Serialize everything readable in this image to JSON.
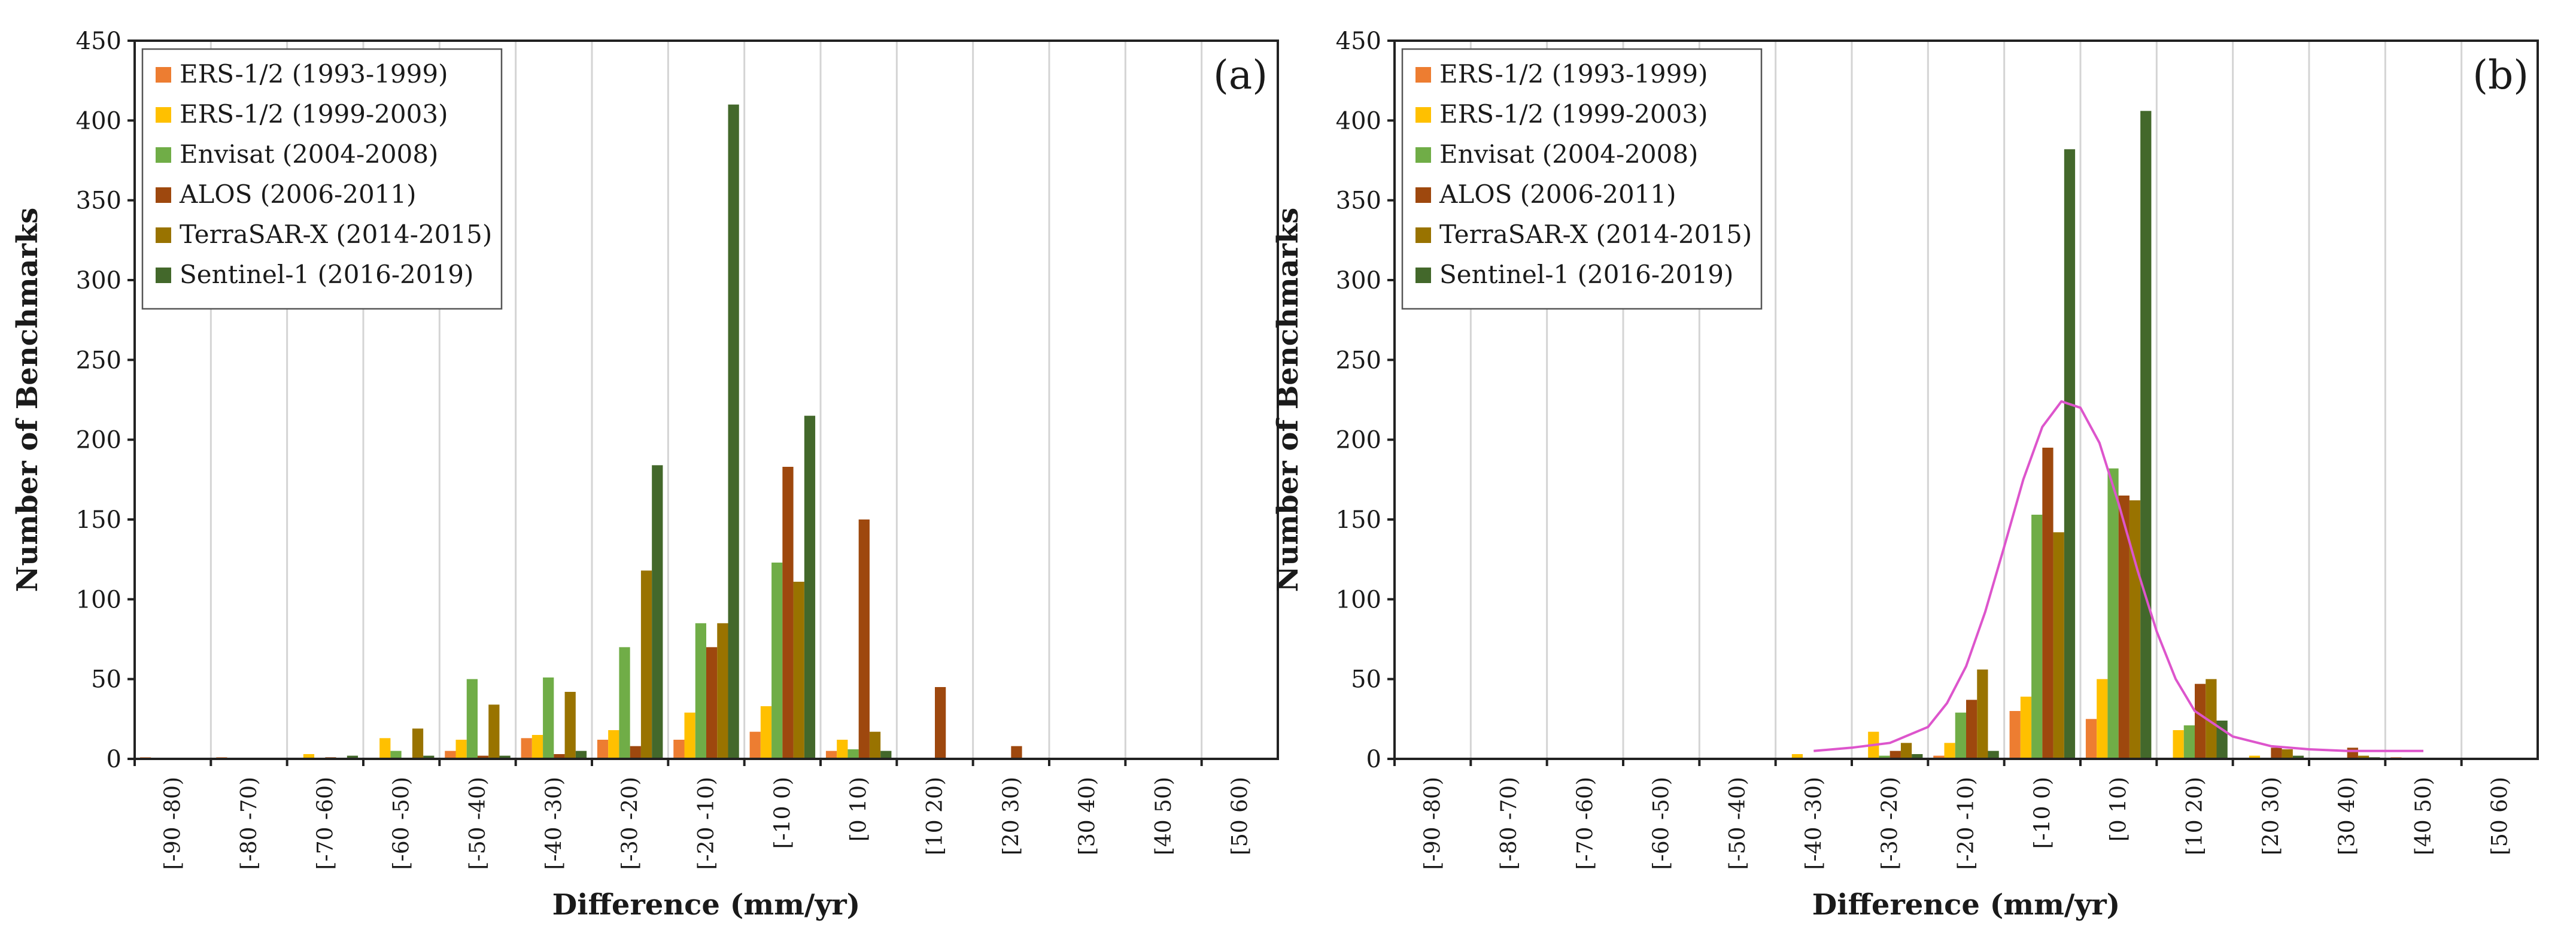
{
  "figure": {
    "y_axis_label": "Number of Benchmarks",
    "x_axis_label": "Difference (mm/yr)"
  },
  "colors": {
    "ERS-1/2 (1993-1999)": "#ed7d31",
    "ERS-1/2 (1999-2003)": "#ffc000",
    "Envisat (2004-2008)": "#70ad47",
    "ALOS (2006-2011)": "#9e480e",
    "TerraSAR-X (2014-2015)": "#997300",
    "Sentinel-1 (2016-2019)": "#43682b",
    "fit_curve": "#dd55cc"
  },
  "chart_data": [
    {
      "type": "bar",
      "panel_label": "(a)",
      "xlabel": "Difference (mm/yr)",
      "ylabel": "Number of Benchmarks",
      "ylim": [
        0,
        450
      ],
      "yticks": [
        0,
        50,
        100,
        150,
        200,
        250,
        300,
        350,
        400,
        450
      ],
      "legend_position": "top-left",
      "categories": [
        "[-90 -80)",
        "[-80 -70)",
        "[-70 -60)",
        "[-60 -50)",
        "[-50 -40)",
        "[-40 -30)",
        "[-30 -20)",
        "[-20 -10)",
        "[-10 0)",
        "[0 10)",
        "[10 20)",
        "[20 30)",
        "[30 40)",
        "[40 50)",
        "[50 60)"
      ],
      "series": [
        {
          "name": "ERS-1/2 (1993-1999)",
          "values": [
            1,
            1,
            0,
            0,
            5,
            13,
            12,
            12,
            17,
            5,
            0,
            0,
            0,
            0,
            0
          ]
        },
        {
          "name": "ERS-1/2 (1999-2003)",
          "values": [
            0,
            0,
            3,
            13,
            12,
            15,
            18,
            29,
            33,
            12,
            0,
            0,
            0,
            0,
            0
          ]
        },
        {
          "name": "Envisat (2004-2008)",
          "values": [
            0,
            0,
            0,
            5,
            50,
            51,
            70,
            85,
            123,
            6,
            0,
            0,
            0,
            0,
            0
          ]
        },
        {
          "name": "ALOS (2006-2011)",
          "values": [
            0,
            0,
            1,
            0,
            2,
            3,
            8,
            70,
            183,
            150,
            45,
            8,
            0,
            0,
            0
          ]
        },
        {
          "name": "TerraSAR-X (2014-2015)",
          "values": [
            0,
            0,
            0,
            19,
            34,
            42,
            118,
            85,
            111,
            17,
            0,
            0,
            0,
            0,
            0
          ]
        },
        {
          "name": "Sentinel-1 (2016-2019)",
          "values": [
            0,
            0,
            2,
            2,
            2,
            5,
            184,
            410,
            215,
            5,
            0,
            0,
            0,
            0,
            0
          ]
        }
      ]
    },
    {
      "type": "bar",
      "panel_label": "(b)",
      "xlabel": "Difference (mm/yr)",
      "ylabel": "Number of Benchmarks",
      "ylim": [
        0,
        450
      ],
      "yticks": [
        0,
        50,
        100,
        150,
        200,
        250,
        300,
        350,
        400,
        450
      ],
      "legend_position": "top-left",
      "categories": [
        "[-90 -80)",
        "[-80 -70)",
        "[-70 -60)",
        "[-60 -50)",
        "[-50 -40)",
        "[-40 -30)",
        "[-30 -20)",
        "[-20 -10)",
        "[-10 0)",
        "[0 10)",
        "[10 20)",
        "[20 30)",
        "[30 40)",
        "[40 50)",
        "[50 60)"
      ],
      "series": [
        {
          "name": "ERS-1/2 (1993-1999)",
          "values": [
            0,
            0,
            0,
            0,
            0,
            0,
            0,
            2,
            30,
            25,
            0,
            0,
            0,
            1,
            0
          ]
        },
        {
          "name": "ERS-1/2 (1999-2003)",
          "values": [
            0,
            0,
            0,
            0,
            0,
            3,
            17,
            10,
            39,
            50,
            18,
            2,
            0,
            0,
            0
          ]
        },
        {
          "name": "Envisat (2004-2008)",
          "values": [
            0,
            0,
            0,
            0,
            0,
            0,
            2,
            29,
            153,
            182,
            21,
            0,
            0,
            0,
            0
          ]
        },
        {
          "name": "ALOS (2006-2011)",
          "values": [
            0,
            0,
            0,
            0,
            0,
            0,
            5,
            37,
            195,
            165,
            47,
            7,
            7,
            0,
            0
          ]
        },
        {
          "name": "TerraSAR-X (2014-2015)",
          "values": [
            0,
            0,
            0,
            0,
            0,
            0,
            10,
            56,
            142,
            162,
            50,
            6,
            2,
            0,
            0
          ]
        },
        {
          "name": "Sentinel-1 (2016-2019)",
          "values": [
            0,
            0,
            0,
            0,
            0,
            0,
            3,
            5,
            382,
            406,
            24,
            2,
            1,
            0,
            0
          ]
        }
      ],
      "fit_curve": {
        "type": "line",
        "description_free": true,
        "x_bin_position": [
          5.5,
          6.0,
          6.5,
          7.0,
          7.25,
          7.5,
          7.75,
          8.0,
          8.25,
          8.5,
          8.75,
          9.0,
          9.25,
          9.5,
          9.75,
          10.0,
          10.25,
          10.5,
          11.0,
          11.5,
          12.0,
          12.5,
          13.0,
          13.5
        ],
        "y": [
          5,
          7,
          10,
          20,
          35,
          58,
          92,
          133,
          175,
          208,
          224,
          220,
          198,
          160,
          118,
          80,
          50,
          30,
          14,
          8,
          6,
          5,
          5,
          5
        ]
      }
    }
  ]
}
